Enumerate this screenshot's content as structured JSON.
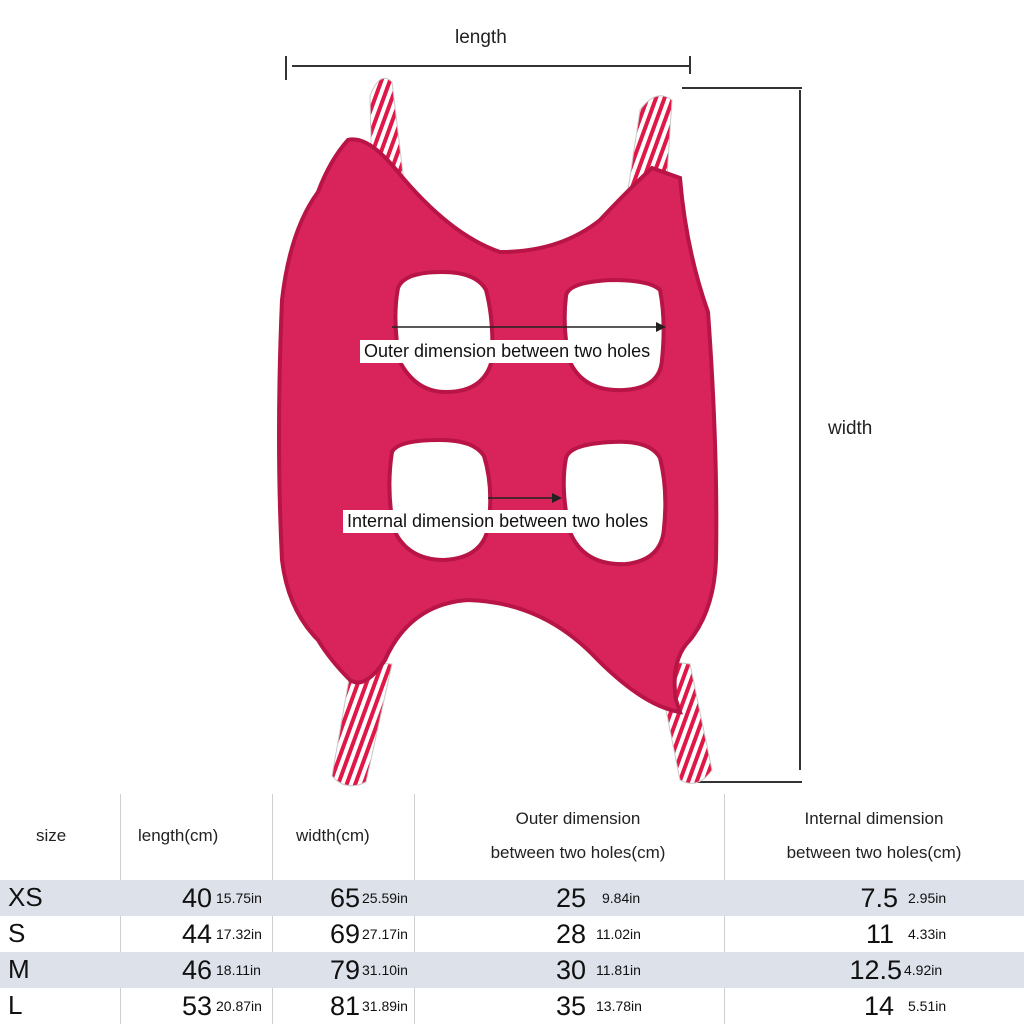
{
  "diagram": {
    "length_label": "length",
    "width_label": "width",
    "outer_label": "Outer dimension between two holes",
    "internal_label": "Internal dimension between two holes",
    "colors": {
      "sling": "#d8245a",
      "edge": "#b81446",
      "strap_stripe": "#e01848"
    }
  },
  "table": {
    "headers": {
      "size": "size",
      "length": "length(cm)",
      "width": "width(cm)",
      "outer_line1": "Outer dimension",
      "outer_line2": "between two holes(cm)",
      "internal_line1": "Internal dimension",
      "internal_line2": "between two holes(cm)"
    },
    "rows": [
      {
        "size": "XS",
        "length_cm": "40",
        "length_in": "15.75in",
        "width_cm": "65",
        "width_in": "25.59in",
        "outer_cm": "25",
        "outer_in": "9.84in",
        "internal_cm": "7.5",
        "internal_in": "2.95in"
      },
      {
        "size": "S",
        "length_cm": "44",
        "length_in": "17.32in",
        "width_cm": "69",
        "width_in": "27.17in",
        "outer_cm": "28",
        "outer_in": "11.02in",
        "internal_cm": "11",
        "internal_in": "4.33in"
      },
      {
        "size": "M",
        "length_cm": "46",
        "length_in": "18.11in",
        "width_cm": "79",
        "width_in": "31.10in",
        "outer_cm": "30",
        "outer_in": "11.81in",
        "internal_cm": "12.5",
        "internal_in": "4.92in"
      },
      {
        "size": "L",
        "length_cm": "53",
        "length_in": "20.87in",
        "width_cm": "81",
        "width_in": "31.89in",
        "outer_cm": "35",
        "outer_in": "13.78in",
        "internal_cm": "14",
        "internal_in": "5.51in"
      }
    ],
    "row_shading": "#dde1ea"
  }
}
